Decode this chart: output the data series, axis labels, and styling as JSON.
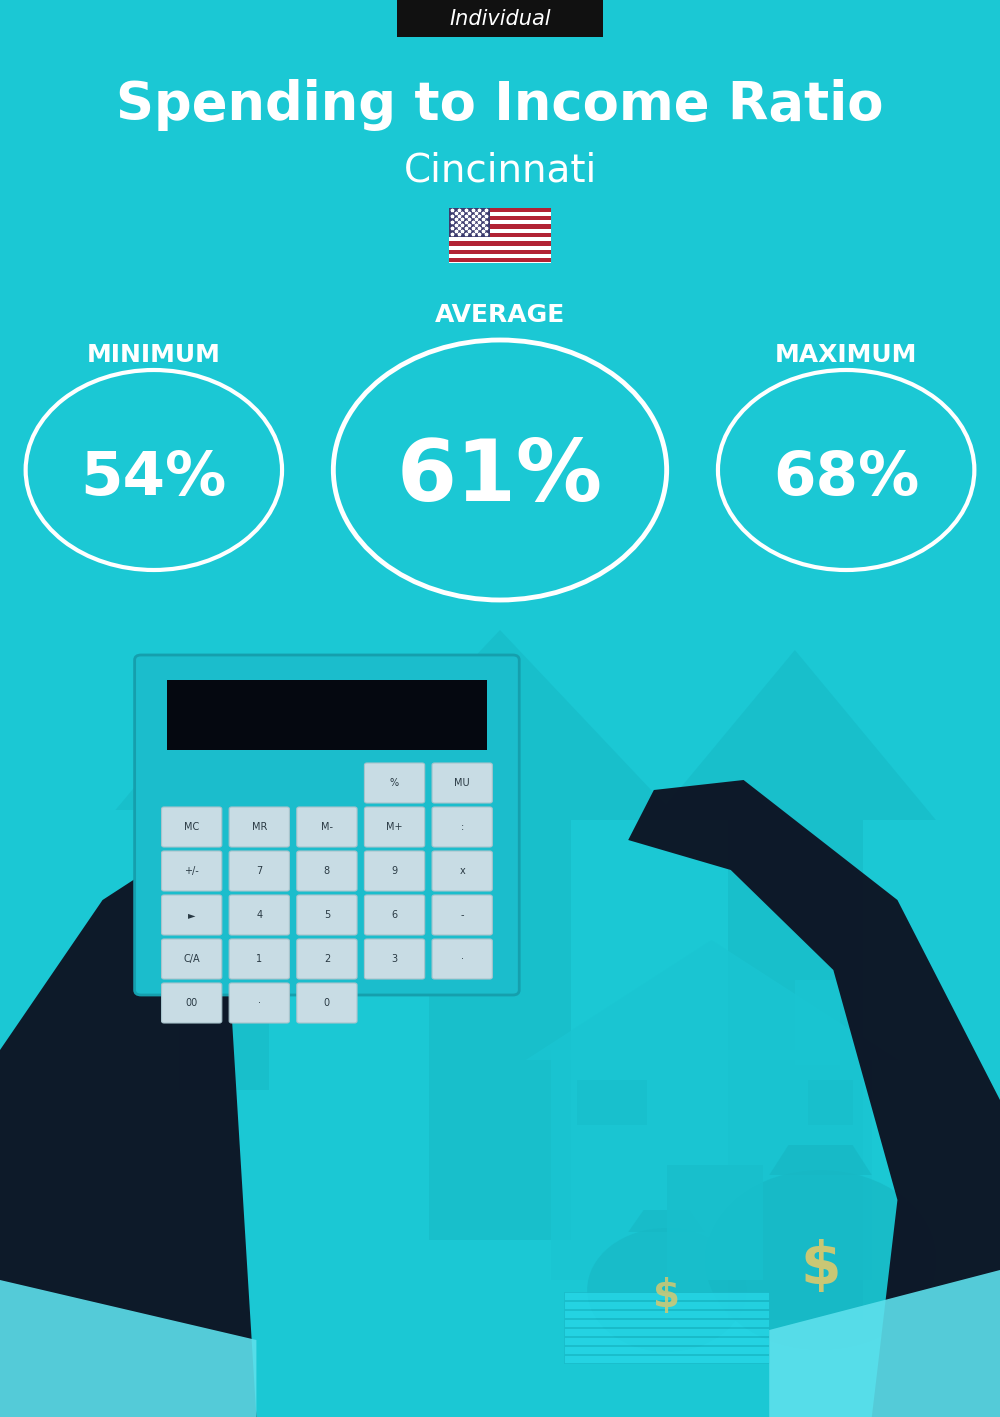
{
  "bg_color": "#1BC8D4",
  "title": "Spending to Income Ratio",
  "subtitle": "Cincinnati",
  "tag_text": "Individual",
  "tag_bg": "#111111",
  "tag_text_color": "#ffffff",
  "min_label": "MINIMUM",
  "avg_label": "AVERAGE",
  "max_label": "MAXIMUM",
  "min_value": "54%",
  "avg_value": "61%",
  "max_value": "68%",
  "circle_color": "#ffffff",
  "text_color": "#ffffff",
  "title_fontsize": 38,
  "subtitle_fontsize": 28,
  "value_fontsize_small": 44,
  "value_fontsize_large": 62,
  "label_fontsize": 18,
  "tag_fontsize": 15,
  "fig_width": 10.0,
  "fig_height": 14.17
}
